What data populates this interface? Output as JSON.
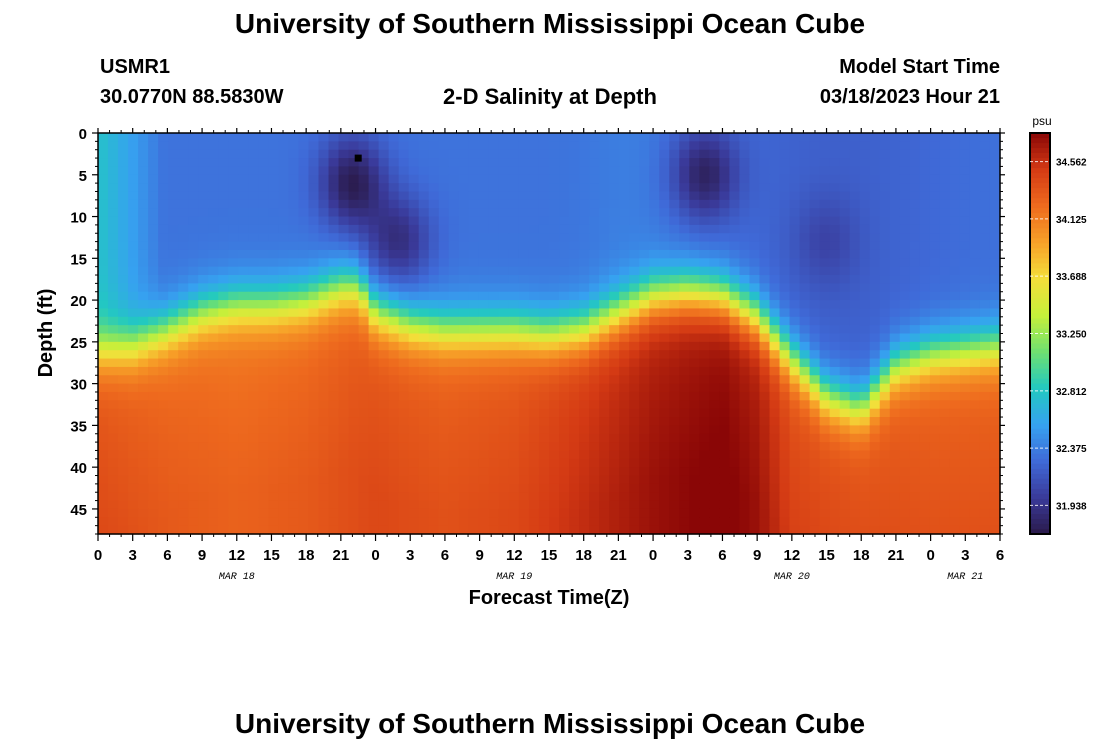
{
  "header": {
    "title": "University of Southern Mississippi Ocean Cube",
    "station_id": "USMR1",
    "station_coords": "30.0770N  88.5830W",
    "plot_title": "2-D Salinity at Depth",
    "model_start_label": "Model Start Time",
    "model_start_value": "03/18/2023 Hour 21"
  },
  "footer": {
    "title": "University of Southern Mississippi Ocean Cube"
  },
  "chart_data": {
    "type": "heatmap",
    "title": "2-D Salinity at Depth",
    "xlabel": "Forecast Time(Z)",
    "ylabel": "Depth (ft)",
    "x_ticks": [
      "0",
      "3",
      "6",
      "9",
      "12",
      "15",
      "18",
      "21",
      "0",
      "3",
      "6",
      "9",
      "12",
      "15",
      "18",
      "21",
      "0",
      "3",
      "6",
      "9",
      "12",
      "15",
      "18",
      "21",
      "0",
      "3",
      "6"
    ],
    "x_tick_hours": [
      0,
      3,
      6,
      9,
      12,
      15,
      18,
      21,
      24,
      27,
      30,
      33,
      36,
      39,
      42,
      45,
      48,
      51,
      54,
      57,
      60,
      63,
      66,
      69,
      72,
      75,
      78
    ],
    "xlim": [
      0,
      78
    ],
    "date_labels": [
      {
        "text": "MAR 18",
        "hour": 12
      },
      {
        "text": "MAR 19",
        "hour": 36
      },
      {
        "text": "MAR 20",
        "hour": 60
      },
      {
        "text": "MAR 21",
        "hour": 75
      }
    ],
    "y_ticks": [
      0,
      5,
      10,
      15,
      20,
      25,
      30,
      35,
      40,
      45
    ],
    "ylim": [
      0,
      48
    ],
    "colorbar": {
      "units": "psu",
      "min": 31.72,
      "max": 34.78,
      "tick_labels": [
        "34.562",
        "34.125",
        "33.688",
        "33.250",
        "32.812",
        "32.375",
        "31.938"
      ],
      "tick_values": [
        34.562,
        34.125,
        33.688,
        33.25,
        32.812,
        32.375,
        31.938
      ],
      "colors": [
        "#2a1a4a",
        "#3a3a9a",
        "#3f6ad8",
        "#36a2f0",
        "#22c9c0",
        "#6fe070",
        "#c6f03a",
        "#f3df3a",
        "#f7a028",
        "#ee6a1e",
        "#d43a14",
        "#8a0606"
      ]
    },
    "marker": {
      "hour": 22.5,
      "depth": 3,
      "label": "station marker"
    },
    "halocline_depth_ft": {
      "hours": [
        0,
        3,
        6,
        9,
        12,
        15,
        18,
        20,
        21,
        22.5,
        24,
        27,
        30,
        33,
        36,
        39,
        42,
        45,
        48,
        51,
        54,
        57,
        60,
        63,
        66,
        69,
        72,
        75,
        78
      ],
      "values": [
        26.0,
        25.5,
        23.5,
        21.5,
        20.5,
        20.5,
        20.0,
        19.0,
        18.5,
        18.5,
        21.5,
        23.0,
        23.5,
        23.5,
        23.5,
        24.0,
        23.5,
        21.5,
        19.5,
        19.0,
        19.5,
        22.0,
        27.0,
        31.5,
        33.0,
        28.0,
        26.5,
        26.0,
        25.5
      ]
    },
    "deep_salinity_at_45ft_psu": {
      "hours": [
        0,
        6,
        12,
        18,
        24,
        30,
        36,
        42,
        48,
        54,
        57,
        60,
        66,
        72,
        78
      ],
      "values": [
        34.3,
        34.2,
        34.15,
        34.2,
        34.3,
        34.25,
        34.3,
        34.45,
        34.6,
        34.7,
        34.6,
        34.35,
        34.3,
        34.25,
        34.25
      ]
    },
    "fresh_patches": [
      {
        "hour": 22.0,
        "depth": 6,
        "salinity_psu": 31.75
      },
      {
        "hour": 26.0,
        "depth": 13,
        "salinity_psu": 31.9
      },
      {
        "hour": 52.5,
        "depth": 5,
        "salinity_psu": 31.8
      },
      {
        "hour": 63.0,
        "depth": 13,
        "salinity_psu": 32.05
      }
    ]
  }
}
